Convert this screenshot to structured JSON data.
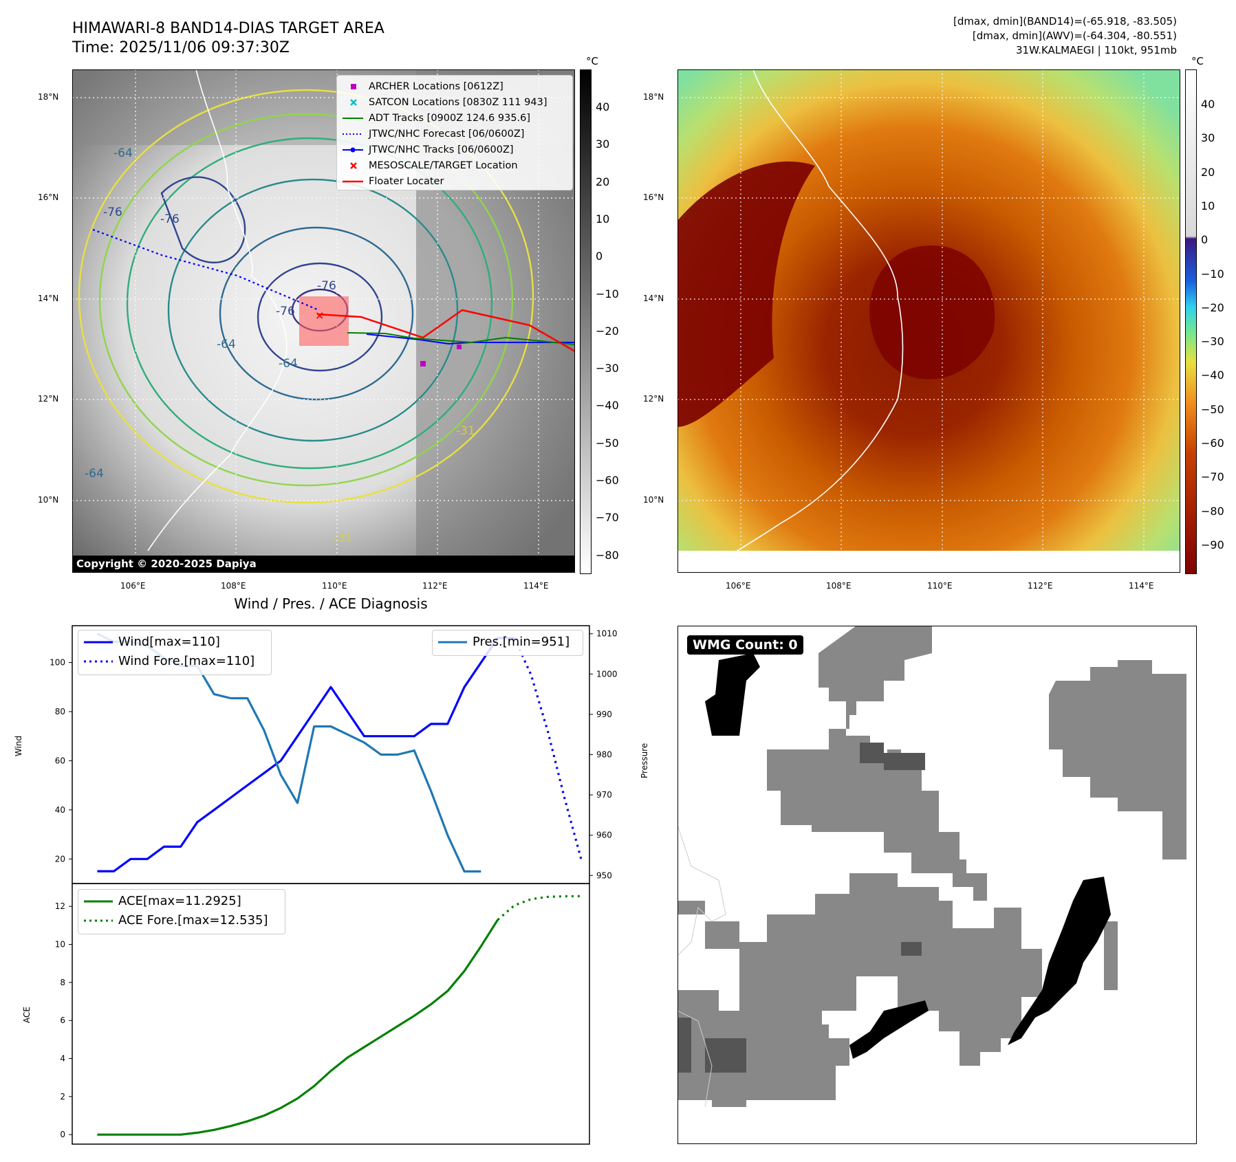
{
  "header": {
    "title_line1": "HIMAWARI-8 BAND14-DIAS TARGET AREA",
    "title_line2": "Time: 2025/11/06 09:37:30Z",
    "stats_line1": "[dmax, dmin](BAND14)=(-65.918, -83.505)",
    "stats_line2": "[dmax, dmin](AWV)=(-64.304, -80.551)",
    "stats_line3": "31W.KALMAEGI | 110kt, 951mb"
  },
  "ir_map": {
    "lat_ticks": [
      "18°N",
      "16°N",
      "14°N",
      "12°N",
      "10°N"
    ],
    "lon_ticks": [
      "106°E",
      "108°E",
      "110°E",
      "112°E",
      "114°E"
    ],
    "copyright": "Copyright © 2020-2025 Dapiya",
    "colorbar_unit": "°C",
    "colorbar_ticks": [
      "40",
      "30",
      "20",
      "10",
      "0",
      "−10",
      "−20",
      "−30",
      "−40",
      "−50",
      "−60",
      "−70",
      "−80"
    ],
    "contour_labels": [
      "-76",
      "-76",
      "-64",
      "-64",
      "-64",
      "-76",
      "-76",
      "-64",
      "-31",
      "-31"
    ],
    "legend": [
      {
        "label": "ARCHER Locations [0612Z]",
        "color": "#c000c0",
        "marker": "square"
      },
      {
        "label": "SATCON Locations [0830Z 111 943]",
        "color": "#00c0c0",
        "marker": "x"
      },
      {
        "label": "ADT Tracks [0900Z 124.6 935.6]",
        "color": "#008000",
        "marker": "line"
      },
      {
        "label": "JTWC/NHC Forecast [06/0600Z]",
        "color": "#0000ff",
        "marker": "dotted"
      },
      {
        "label": "JTWC/NHC Tracks [06/0600Z]",
        "color": "#0000ff",
        "marker": "line-dot"
      },
      {
        "label": "MESOSCALE/TARGET Location",
        "color": "#ff0000",
        "marker": "x"
      },
      {
        "label": "Floater Locater",
        "color": "#ff0000",
        "marker": "line"
      }
    ]
  },
  "color_map": {
    "lat_ticks": [
      "18°N",
      "16°N",
      "14°N",
      "12°N",
      "10°N"
    ],
    "lon_ticks": [
      "106°E",
      "108°E",
      "110°E",
      "112°E",
      "114°E"
    ],
    "colorbar_unit": "°C",
    "colorbar_ticks": [
      "40",
      "30",
      "20",
      "10",
      "0",
      "−10",
      "−20",
      "−30",
      "−40",
      "−50",
      "−60",
      "−70",
      "−80",
      "−90"
    ]
  },
  "diagnosis": {
    "title": "Wind / Pres. / ACE Diagnosis",
    "wind_ylabel": "Wind",
    "pres_ylabel": "Pressure",
    "ace_ylabel": "ACE",
    "legend_wind": "Wind[max=110]",
    "legend_wind_fore": "Wind Fore.[max=110]",
    "legend_pres": "Pres.[min=951]",
    "legend_ace": "ACE[max=11.2925]",
    "legend_ace_fore": "ACE Fore.[max=12.535]"
  },
  "wmg": {
    "label": "WMG Count: 0"
  },
  "chart_data": [
    {
      "type": "line",
      "x": [
        0,
        1,
        2,
        3,
        4,
        5,
        6,
        7,
        8,
        9,
        10,
        11,
        12,
        13,
        14,
        15,
        16,
        17,
        18,
        19,
        20,
        21,
        22,
        23,
        24,
        25
      ],
      "series": [
        {
          "name": "Wind[max=110]",
          "axis": "left",
          "color": "#0000ff",
          "values": [
            15,
            15,
            20,
            20,
            25,
            25,
            35,
            40,
            45,
            50,
            55,
            60,
            70,
            80,
            90,
            80,
            70,
            70,
            70,
            70,
            75,
            75,
            90,
            100,
            110,
            110
          ]
        },
        {
          "name": "Pres.[min=951]",
          "axis": "right",
          "color": "#1f77b4",
          "values": [
            1010,
            1008,
            1008,
            1007,
            1004,
            1002,
            1002,
            995,
            994,
            994,
            986,
            975,
            968,
            987,
            987,
            985,
            983,
            980,
            980,
            981,
            971,
            960,
            951,
            951,
            null,
            null
          ]
        },
        {
          "name": "Wind Fore.[max=110]",
          "axis": "left",
          "color": "#0000ff",
          "style": "dotted",
          "x": [
            25,
            26,
            27,
            28,
            29
          ],
          "values": [
            110,
            95,
            72,
            45,
            20
          ]
        }
      ],
      "ylim_left": [
        10,
        115
      ],
      "yticks_left": [
        20,
        40,
        60,
        80,
        100
      ],
      "ylim_right": [
        948,
        1012
      ],
      "yticks_right": [
        950,
        960,
        970,
        980,
        990,
        1000,
        1010
      ],
      "xlim": [
        -1.5,
        29.5
      ]
    },
    {
      "type": "line",
      "x": [
        0,
        1,
        2,
        3,
        4,
        5,
        6,
        7,
        8,
        9,
        10,
        11,
        12,
        13,
        14,
        15,
        16,
        17,
        18,
        19,
        20,
        21,
        22,
        23,
        24,
        25
      ],
      "series": [
        {
          "name": "ACE[max=11.2925]",
          "color": "#008000",
          "values": [
            0,
            0,
            0,
            0,
            0,
            0,
            0.1,
            0.25,
            0.45,
            0.7,
            1.0,
            1.4,
            1.9,
            2.55,
            3.35,
            4.05,
            4.6,
            5.15,
            5.7,
            6.25,
            6.85,
            7.55,
            8.6,
            9.9,
            11.2925,
            null
          ]
        },
        {
          "name": "ACE Fore.[max=12.535]",
          "color": "#008000",
          "style": "dotted",
          "x": [
            24,
            25,
            26,
            27,
            28,
            29
          ],
          "values": [
            11.2925,
            12.05,
            12.38,
            12.5,
            12.53,
            12.535
          ]
        }
      ],
      "ylim": [
        -0.5,
        13.2
      ],
      "yticks": [
        0,
        2,
        4,
        6,
        8,
        10,
        12
      ],
      "xlim": [
        -1.5,
        29.5
      ]
    }
  ]
}
